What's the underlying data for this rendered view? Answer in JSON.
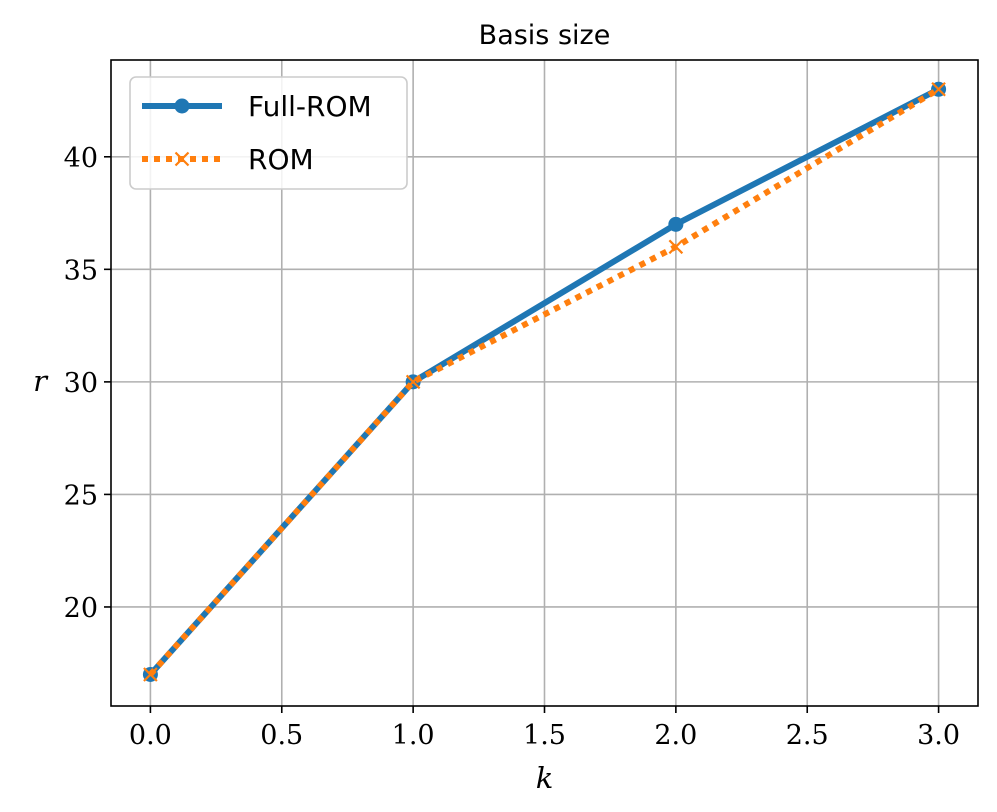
{
  "chart_data": {
    "type": "line",
    "title": "Basis size",
    "xlabel": "k",
    "ylabel": "r",
    "xlim": [
      -0.15,
      3.15
    ],
    "ylim": [
      15.6,
      44.3
    ],
    "xticks": [
      0.0,
      0.5,
      1.0,
      1.5,
      2.0,
      2.5,
      3.0
    ],
    "xtick_labels": [
      "0.0",
      "0.5",
      "1.0",
      "1.5",
      "2.0",
      "2.5",
      "3.0"
    ],
    "yticks": [
      20,
      25,
      30,
      35,
      40
    ],
    "ytick_labels": [
      "20",
      "25",
      "30",
      "35",
      "40"
    ],
    "grid": true,
    "legend_position": "top-left",
    "series": [
      {
        "name": "Full-ROM",
        "x": [
          0,
          1,
          2,
          3
        ],
        "y": [
          17,
          30,
          37,
          43
        ],
        "color": "#1f77b4",
        "line_style": "solid",
        "marker": "circle"
      },
      {
        "name": "ROM",
        "x": [
          0,
          1,
          2,
          3
        ],
        "y": [
          17,
          30,
          36,
          43
        ],
        "color": "#ff7f0e",
        "line_style": "dotted",
        "marker": "x"
      }
    ]
  }
}
